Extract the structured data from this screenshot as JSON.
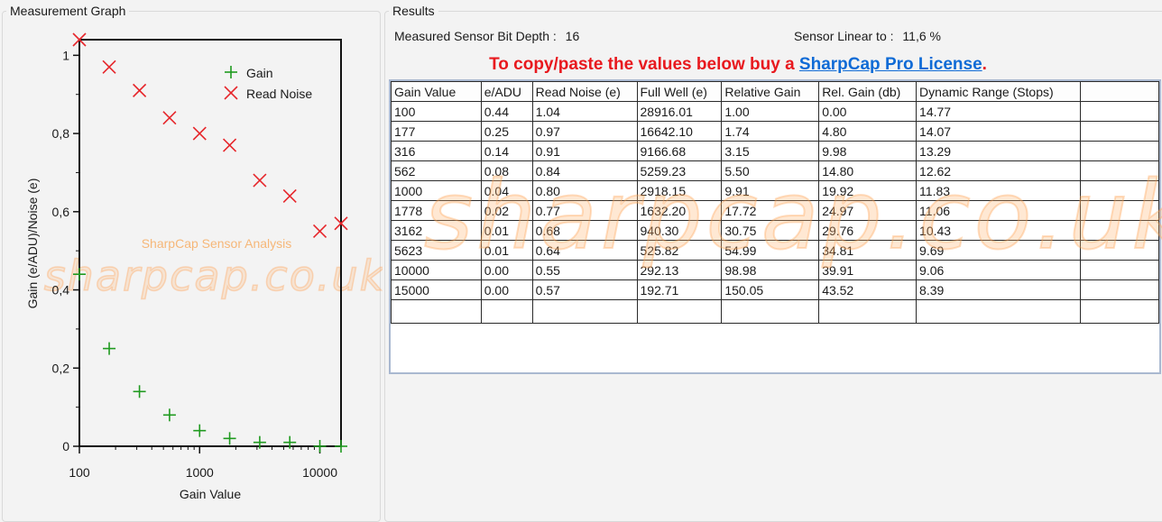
{
  "graph_panel": {
    "title": "Measurement Graph",
    "watermark_caption": "SharpCap Sensor Analysis",
    "watermark": "sharpcap.co.uk"
  },
  "chart_data": {
    "type": "scatter",
    "xlabel": "Gain Value",
    "ylabel": "Gain (e/ADU)/Noise (e)",
    "x_scale": "log",
    "xlim": [
      100,
      15000
    ],
    "ylim": [
      0,
      1.04
    ],
    "x_ticks": [
      100,
      1000,
      10000
    ],
    "x_tick_labels": [
      "100",
      "1000",
      "10000"
    ],
    "y_ticks": [
      0,
      0.2,
      0.4,
      0.6,
      0.8,
      1
    ],
    "y_tick_labels": [
      "0",
      "0,2",
      "0,4",
      "0,6",
      "0,8",
      "1"
    ],
    "legend_placement": "top-right",
    "grid": false,
    "x": [
      100,
      177,
      316,
      562,
      1000,
      1778,
      3162,
      5623,
      10000,
      15000
    ],
    "series": [
      {
        "name": "Gain",
        "marker": "plus",
        "color": "#1f9a1f",
        "values": [
          0.44,
          0.25,
          0.14,
          0.08,
          0.04,
          0.02,
          0.01,
          0.01,
          0.0,
          0.0
        ]
      },
      {
        "name": "Read Noise",
        "marker": "cross",
        "color": "#e6262b",
        "values": [
          1.04,
          0.97,
          0.91,
          0.84,
          0.8,
          0.77,
          0.68,
          0.64,
          0.55,
          0.57
        ]
      }
    ]
  },
  "results_panel": {
    "title": "Results",
    "bit_depth_label": "Measured Sensor Bit Depth :",
    "bit_depth_value": "16",
    "linear_label": "Sensor Linear to :",
    "linear_value": "11,6 %",
    "license_prefix": "To copy/paste the values below buy a ",
    "license_link": "SharpCap Pro License",
    "license_suffix": ".",
    "watermark": "sharpcap.co.uk",
    "columns": [
      "Gain Value",
      "e/ADU",
      "Read Noise (e)",
      "Full Well (e)",
      "Relative Gain",
      "Rel. Gain (db)",
      "Dynamic Range (Stops)"
    ],
    "rows": [
      [
        "100",
        "0.44",
        "1.04",
        "28916.01",
        "1.00",
        "0.00",
        "14.77"
      ],
      [
        "177",
        "0.25",
        "0.97",
        "16642.10",
        "1.74",
        "4.80",
        "14.07"
      ],
      [
        "316",
        "0.14",
        "0.91",
        "9166.68",
        "3.15",
        "9.98",
        "13.29"
      ],
      [
        "562",
        "0.08",
        "0.84",
        "5259.23",
        "5.50",
        "14.80",
        "12.62"
      ],
      [
        "1000",
        "0.04",
        "0.80",
        "2918.15",
        "9.91",
        "19.92",
        "11.83"
      ],
      [
        "1778",
        "0.02",
        "0.77",
        "1632.20",
        "17.72",
        "24.97",
        "11.06"
      ],
      [
        "3162",
        "0.01",
        "0.68",
        "940.30",
        "30.75",
        "29.76",
        "10.43"
      ],
      [
        "5623",
        "0.01",
        "0.64",
        "525.82",
        "54.99",
        "34.81",
        "9.69"
      ],
      [
        "10000",
        "0.00",
        "0.55",
        "292.13",
        "98.98",
        "39.91",
        "9.06"
      ],
      [
        "15000",
        "0.00",
        "0.57",
        "192.71",
        "150.05",
        "43.52",
        "8.39"
      ]
    ],
    "colors": {
      "warning": "#e8191e",
      "link": "#0f6bd6",
      "table_border": "#a9b8d0"
    }
  }
}
